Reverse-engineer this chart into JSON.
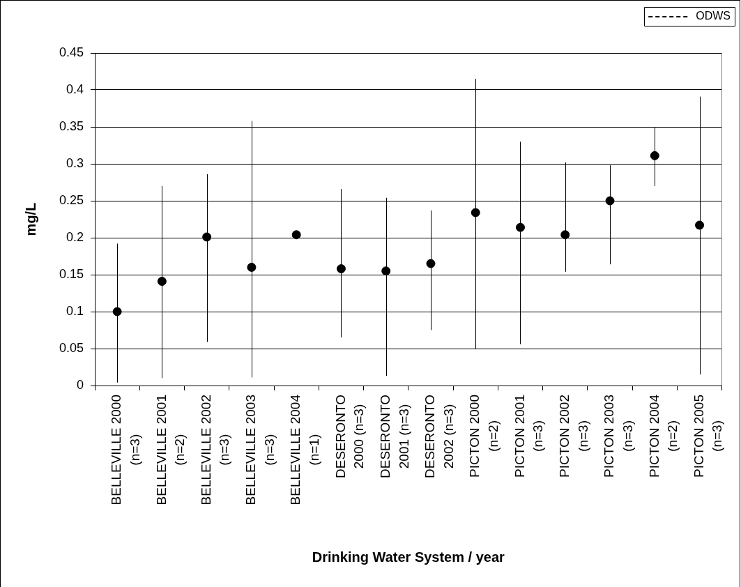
{
  "chart_data": {
    "type": "scatter",
    "xlabel": "Drinking Water System / year",
    "ylabel": "mg/L",
    "categories": [
      "BELLEVILLE 2000 (n=3)",
      "BELLEVILLE 2001 (n=2)",
      "BELLEVILLE 2002 (n=3)",
      "BELLEVILLE 2003 (n=3)",
      "BELLEVILLE 2004 (n=1)",
      "DESERONTO 2000 (n=3)",
      "DESERONTO 2001 (n=3)",
      "DESERONTO 2002 (n=3)",
      "PICTON 2000 (n=2)",
      "PICTON 2001 (n=3)",
      "PICTON 2002 (n=3)",
      "PICTON 2003 (n=3)",
      "PICTON 2004 (n=2)",
      "PICTON 2005 (n=3)"
    ],
    "series": [
      {
        "color": "#000000",
        "marker": "circle",
        "values": [
          0.1,
          0.141,
          0.201,
          0.16,
          0.204,
          0.158,
          0.155,
          0.165,
          0.234,
          0.214,
          0.204,
          0.25,
          0.311,
          0.217
        ],
        "errors": [
          [
            0.004,
            0.192
          ],
          [
            0.01,
            0.27
          ],
          [
            0.059,
            0.286
          ],
          [
            0.011,
            0.358
          ],
          null,
          [
            0.065,
            0.266
          ],
          [
            0.013,
            0.254
          ],
          [
            0.075,
            0.237
          ],
          [
            0.05,
            0.415
          ],
          [
            0.056,
            0.33
          ],
          [
            0.154,
            0.302
          ],
          [
            0.164,
            0.298
          ],
          [
            0.27,
            0.35
          ],
          [
            0.015,
            0.391
          ]
        ]
      },
      {
        "type": "line",
        "name": "ODWS",
        "color": "#000000",
        "line_style": "dashed",
        "marker": "none",
        "values": [
          null,
          null,
          null,
          null,
          null,
          null,
          null,
          null,
          null,
          null,
          null,
          null,
          null,
          null
        ]
      }
    ],
    "ylim": [
      0,
      0.45
    ],
    "yticks": [
      0,
      0.05,
      0.1,
      0.15,
      0.2,
      0.25,
      0.3,
      0.35,
      0.4,
      0.45
    ],
    "grid": "y",
    "legend": "top right"
  }
}
